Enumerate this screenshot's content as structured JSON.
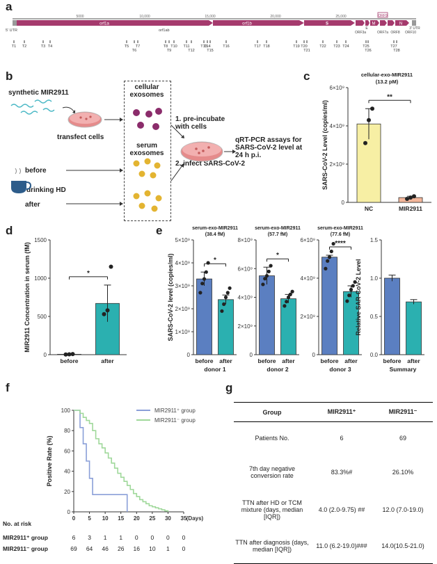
{
  "panels": {
    "a": "a",
    "b": "b",
    "c": "c",
    "d": "d",
    "e": "e",
    "f": "f",
    "g": "g"
  },
  "genome": {
    "scale": [
      "5000",
      "10,000",
      "15,000",
      "20,000",
      "25,000"
    ],
    "utr5": "5' UTR",
    "utr3": "3' UTR",
    "orf1a": "orf1a",
    "orf1b": "orf1b",
    "orf1ab": "orf1ab",
    "s": "S",
    "e": "E",
    "m": "M",
    "n": "N",
    "orf3a": "ORF3a",
    "orf7a": "ORF7a",
    "orf8": "ORF8",
    "orf10": "ORF10",
    "highlight": "ORF9",
    "sites": [
      "T1",
      "T2",
      "T3",
      "T4",
      "T5",
      "T6",
      "T7",
      "T8",
      "T9",
      "T10",
      "T11",
      "T12",
      "T13",
      "T14",
      "T15",
      "T16",
      "T17",
      "T18",
      "T19",
      "T20",
      "T21",
      "T22",
      "T23",
      "T24",
      "T25",
      "T26",
      "T27",
      "T28"
    ]
  },
  "panel_b": {
    "synthetic": "synthetic MIR2911",
    "transfect": "transfect cells",
    "cellular": "cellular exosomes",
    "serum": "serum exosomes",
    "before": "before",
    "drinking": "drinking HD",
    "after": "after",
    "step1": "1. pre-incubate with cells",
    "step2": "2. infect SARS-CoV-2",
    "assay": "qRT-PCR assays for SARS-CoV-2 level at 24 h p.i."
  },
  "chart_data": [
    {
      "panel": "c",
      "type": "bar",
      "title": "cellular-exo-MIR2911 (13.2 pM)",
      "categories": [
        "NC",
        "MIR2911"
      ],
      "values": [
        4100000000,
        250000000
      ],
      "errors": [
        800000000,
        70000000
      ],
      "points": [
        [
          3100000000,
          4300000000,
          4900000000
        ],
        [
          180000000,
          250000000,
          320000000
        ]
      ],
      "colors": [
        "#f7efa4",
        "#f4b79b"
      ],
      "ylabel": "SARS-CoV-2 Level (copies/ml)",
      "yticks": [
        "0",
        "2×10⁹",
        "4×10⁹",
        "6×10⁹"
      ],
      "ylim": [
        0,
        6000000000
      ],
      "significance": "**"
    },
    {
      "panel": "d",
      "type": "bar",
      "categories": [
        "before",
        "after"
      ],
      "values": [
        5,
        670
      ],
      "errors": [
        3,
        240
      ],
      "points": [
        [
          2,
          5,
          8
        ],
        [
          530,
          580,
          1150
        ]
      ],
      "colors": [
        "#2bb0b0",
        "#2bb0b0"
      ],
      "ylabel": "MIR2911 Concentration in serum (fM)",
      "yticks": [
        "0",
        "500",
        "1000",
        "1500"
      ],
      "ylim": [
        0,
        1500
      ],
      "significance": "*"
    },
    {
      "panel": "e",
      "type": "bar",
      "ylabel": "SARS-CoV-2 level (copies/ml)",
      "groups": [
        {
          "title": "serum-exo-MIR2911 (38.4 fM)",
          "donor": "donor 1",
          "categories": [
            "before",
            "after"
          ],
          "values": [
            3.3,
            2.4
          ],
          "errors": [
            0.3,
            0.2
          ],
          "yticks": [
            "0",
            "1×10⁹",
            "2×10⁹",
            "3×10⁹",
            "4×10⁹",
            "5×10⁹"
          ],
          "ymax": 5,
          "sig": "*"
        },
        {
          "title": "serum-exo-MIR2911 (57.7 fM)",
          "donor": "donor 2",
          "categories": [
            "before",
            "after"
          ],
          "values": [
            5.5,
            3.9
          ],
          "errors": [
            0.6,
            0.3
          ],
          "yticks": [
            "0",
            "2×10⁹",
            "4×10⁹",
            "6×10⁹",
            "8×10⁹"
          ],
          "ymax": 8,
          "sig": "*"
        },
        {
          "title": "serum-exo-MIR2911 (77.6 fM)",
          "donor": "donor 3",
          "categories": [
            "before",
            "after"
          ],
          "values": [
            5.1,
            3.3
          ],
          "errors": [
            0.1,
            0.3
          ],
          "yticks": [
            "0",
            "2×10⁹",
            "4×10⁹",
            "6×10⁹"
          ],
          "ymax": 6,
          "sig": "****"
        },
        {
          "title": "",
          "donor": "Summary",
          "ylabel": "Relative SAR-CoV-2 Level",
          "categories": [
            "before",
            "after"
          ],
          "values": [
            1.0,
            0.69
          ],
          "errors": [
            0.04,
            0.03
          ],
          "yticks": [
            "0.0",
            "0.5",
            "1.0",
            "1.5"
          ],
          "ymax": 1.5,
          "sig": ""
        }
      ],
      "colors": [
        "#5b7fc1",
        "#2bb0b0"
      ]
    },
    {
      "panel": "f",
      "type": "line",
      "ylabel": "Positive Rate (%)",
      "xlabel": "(Days)",
      "xticks": [
        "0",
        "5",
        "10",
        "15",
        "20",
        "25",
        "30",
        "35"
      ],
      "yticks": [
        "0",
        "20",
        "40",
        "60",
        "80",
        "100"
      ],
      "series": [
        {
          "name": "MIR2911⁺ group",
          "color": "#8a9fd8",
          "x": [
            0,
            2,
            3,
            4,
            5,
            6,
            17
          ],
          "y": [
            100,
            83,
            67,
            50,
            33,
            17,
            0
          ]
        },
        {
          "name": "MIR2911⁻ group",
          "color": "#9fd89a",
          "x": [
            0,
            1,
            2,
            3,
            4,
            5,
            6,
            7,
            8,
            9,
            10,
            11,
            12,
            13,
            14,
            15,
            16,
            17,
            18,
            19,
            20,
            21,
            22,
            23,
            24,
            25,
            26,
            27,
            28,
            29,
            30
          ],
          "y": [
            100,
            100,
            97,
            93,
            90,
            87,
            80,
            72,
            67,
            63,
            58,
            53,
            48,
            43,
            38,
            34,
            30,
            26,
            22,
            18,
            15,
            12,
            10,
            8,
            6,
            5,
            4,
            3,
            2,
            1,
            0
          ]
        }
      ],
      "risk_title": "No. at risk",
      "risk": [
        {
          "label": "MIR2911⁺ group",
          "values": [
            "6",
            "3",
            "1",
            "1",
            "0",
            "0",
            "0",
            "0"
          ]
        },
        {
          "label": "MIR2911⁻ group",
          "values": [
            "69",
            "64",
            "46",
            "26",
            "16",
            "10",
            "1",
            "0"
          ]
        }
      ]
    }
  ],
  "table": {
    "headers": [
      "Group",
      "MIR2911⁺",
      "MIR2911⁻"
    ],
    "rows": [
      {
        "label": "Patients No.",
        "a": "6",
        "b": "69"
      },
      {
        "label": "7th day negative conversion rate",
        "a": "83.3%#",
        "b": "26.10%"
      },
      {
        "label": "TTN after HD or TCM mixture (days, median [IQR])",
        "a": "4.0 (2.0-9.75) ##",
        "b": "12.0 (7.0-19.0)"
      },
      {
        "label": "TTN after diagnosis (days, median [IQR])",
        "a": "11.0 (6.2-19.0)###",
        "b": "14.0(10.5-21.0)"
      }
    ]
  }
}
